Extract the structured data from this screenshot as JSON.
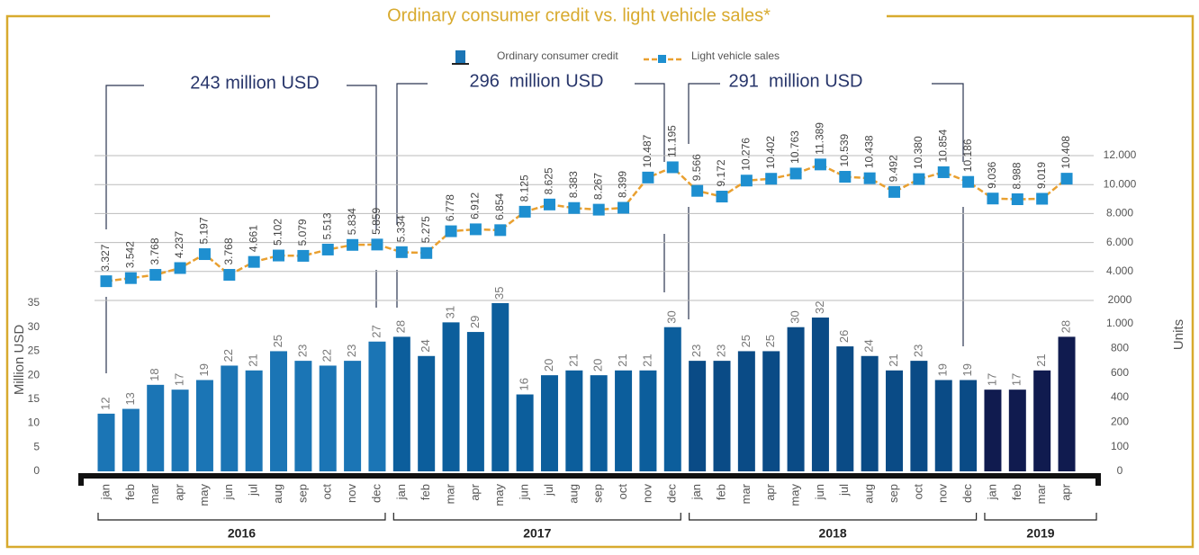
{
  "chart_data": {
    "type": "bar_line",
    "title": "Ordinary consumer credit vs. light vehicle sales*",
    "y_label": "Million USD",
    "y2_label": "Units",
    "annotations": [
      "243 million USD",
      "296  million USD",
      "291  million USD"
    ],
    "groups": [
      {
        "label": "2016",
        "color": "#1b75b5",
        "categories": [
          "jan",
          "feb",
          "mar",
          "apr",
          "may",
          "jun",
          "jul",
          "aug",
          "sep",
          "oct",
          "nov",
          "dec"
        ]
      },
      {
        "label": "2017",
        "color": "#0c5e9c",
        "categories": [
          "jan",
          "feb",
          "mar",
          "apr",
          "may",
          "jun",
          "jul",
          "aug",
          "sep",
          "oct",
          "nov",
          "dec"
        ]
      },
      {
        "label": "2018",
        "color": "#0a4b86",
        "categories": [
          "jan",
          "feb",
          "mar",
          "apr",
          "may",
          "jun",
          "jul",
          "aug",
          "sep",
          "oct",
          "nov",
          "dec"
        ]
      },
      {
        "label": "2019",
        "color": "#101b4f",
        "categories": [
          "jan",
          "feb",
          "mar",
          "apr"
        ]
      }
    ],
    "series": [
      {
        "name": "Ordinary consumer credit",
        "values": [
          12,
          13,
          18,
          17,
          19,
          22,
          21,
          25,
          23,
          22,
          23,
          27,
          28,
          24,
          31,
          29,
          35,
          16,
          20,
          21,
          20,
          21,
          21,
          30,
          23,
          23,
          25,
          25,
          30,
          32,
          26,
          24,
          21,
          23,
          19,
          19,
          17,
          17,
          21,
          28
        ]
      },
      {
        "name": "Light vehicle sales",
        "color": "#e9a030",
        "marker_color": "#1e8fd0",
        "axis": "y2",
        "values": [
          3327,
          3542,
          3768,
          4237,
          5197,
          3768,
          4661,
          5102,
          5079,
          5513,
          5834,
          5859,
          5334,
          5275,
          6778,
          6912,
          6854,
          8125,
          8625,
          8383,
          8267,
          8399,
          10487,
          11195,
          9566,
          9172,
          10276,
          10402,
          10763,
          11389,
          10539,
          10438,
          9492,
          10380,
          10854,
          10186,
          9036,
          8988,
          9019,
          10408
        ],
        "value_labels": [
          "3.327",
          "3.542",
          "3.768",
          "4.237",
          "5.197",
          "3.768",
          "4.661",
          "5.102",
          "5.079",
          "5.513",
          "5.834",
          "5.859",
          "5.334",
          "5.275",
          "6.778",
          "6.912",
          "6.854",
          "8.125",
          "8.625",
          "8.383",
          "8.267",
          "8.399",
          "10.487",
          "11.195",
          "9.566",
          "9.172",
          "10.276",
          "10.402",
          "10.763",
          "11.389",
          "10.539",
          "10.438",
          "9.492",
          "10.380",
          "10.854",
          "10.186",
          "9.036",
          "8.988",
          "9.019",
          "10.408"
        ]
      }
    ],
    "ylim": [
      0,
      35
    ],
    "yticks": [
      0,
      5,
      10,
      15,
      20,
      25,
      30,
      35
    ],
    "y2lim": [
      2000,
      12000
    ],
    "y2ticks": [
      2000,
      {
        "value": 4000,
        "label": "4.000"
      },
      {
        "value": 6000,
        "label": "6.000"
      },
      {
        "value": 8000,
        "label": "8.000"
      },
      {
        "value": 10000,
        "label": "10.000"
      },
      {
        "value": 12000,
        "label": "12.000"
      }
    ],
    "y3ticks": [
      0,
      100,
      200,
      400,
      600,
      800,
      {
        "value": 1000,
        "label": "1.000"
      }
    ],
    "grid": true
  }
}
